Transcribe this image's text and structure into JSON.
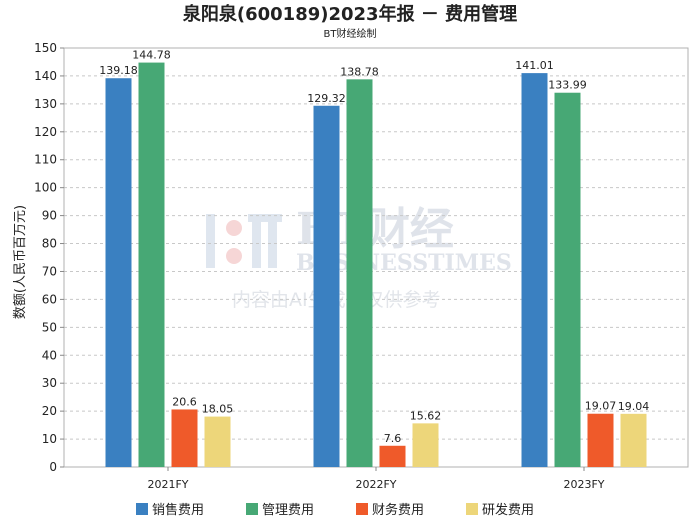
{
  "chart_data": {
    "type": "bar",
    "title": "泉阳泉(600189)2023年报 － 费用管理",
    "subtitle": "BT财经绘制",
    "ylabel": "数额(人民币百万元)",
    "xlabel": "",
    "categories": [
      "2021FY",
      "2022FY",
      "2023FY"
    ],
    "ylim": [
      0,
      150
    ],
    "yticks": [
      0,
      10,
      20,
      30,
      40,
      50,
      60,
      70,
      80,
      90,
      100,
      110,
      120,
      130,
      140,
      150
    ],
    "grid": true,
    "legend_position": "bottom",
    "series": [
      {
        "name": "销售费用",
        "color": "#3a80c1",
        "values": [
          139.18,
          129.32,
          141.01
        ]
      },
      {
        "name": "管理费用",
        "color": "#47a875",
        "values": [
          144.78,
          138.78,
          133.99
        ]
      },
      {
        "name": "财务费用",
        "color": "#ef5a2a",
        "values": [
          20.6,
          7.6,
          19.07
        ]
      },
      {
        "name": "研发费用",
        "color": "#edd67a",
        "values": [
          18.05,
          15.62,
          19.04
        ]
      }
    ]
  },
  "watermark": {
    "brand": "BT财经",
    "brand_en": "BUSINESSTIMES",
    "note": "内容由AI生成，仅供参考"
  }
}
